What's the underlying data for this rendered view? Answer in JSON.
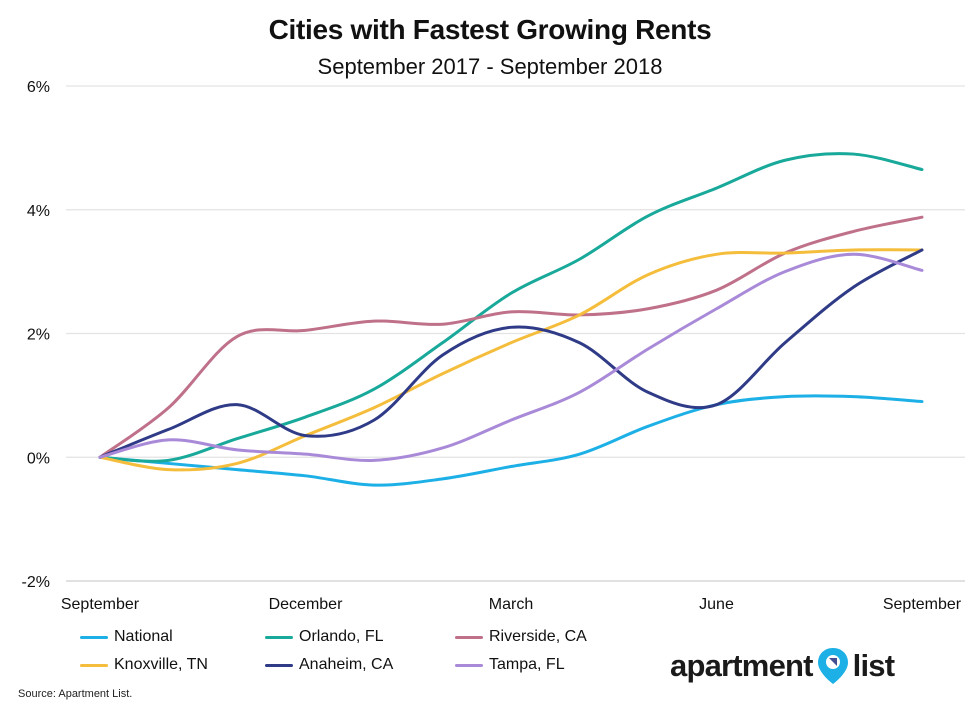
{
  "chart_data": {
    "type": "line",
    "title": "Cities with Fastest Growing Rents",
    "subtitle": "September 2017 - September 2018",
    "xlabel": "",
    "ylabel": "",
    "x": [
      0,
      1,
      2,
      3,
      4,
      5,
      6,
      7,
      8,
      9,
      10,
      11,
      12
    ],
    "x_tick_labels": [
      {
        "label": "September",
        "x": 0
      },
      {
        "label": "December",
        "x": 3
      },
      {
        "label": "March",
        "x": 6
      },
      {
        "label": "June",
        "x": 9
      },
      {
        "label": "September",
        "x": 12
      }
    ],
    "y_ticks": [
      -2,
      0,
      2,
      4,
      6
    ],
    "y_tick_labels": [
      "-2%",
      "0%",
      "2%",
      "4%",
      "6%"
    ],
    "ylim": [
      -2,
      6
    ],
    "grid": true,
    "legend_position": "bottom-left",
    "series": [
      {
        "name": "National",
        "color": "#1cb0e6",
        "values": [
          0,
          -0.1,
          -0.2,
          -0.3,
          -0.45,
          -0.35,
          -0.15,
          0.05,
          0.5,
          0.85,
          0.98,
          0.98,
          0.9
        ]
      },
      {
        "name": "Orlando, FL",
        "color": "#18a99a",
        "values": [
          0,
          -0.05,
          0.3,
          0.65,
          1.1,
          1.85,
          2.65,
          3.2,
          3.9,
          4.35,
          4.8,
          4.9,
          4.65
        ]
      },
      {
        "name": "Riverside, CA",
        "color": "#c0718a",
        "values": [
          0,
          0.8,
          1.95,
          2.05,
          2.2,
          2.15,
          2.35,
          2.3,
          2.4,
          2.7,
          3.3,
          3.65,
          3.88
        ]
      },
      {
        "name": "Knoxville, TN",
        "color": "#f5bd3c",
        "values": [
          0,
          -0.2,
          -0.1,
          0.35,
          0.8,
          1.35,
          1.85,
          2.3,
          2.95,
          3.28,
          3.3,
          3.35,
          3.35
        ]
      },
      {
        "name": "Anaheim, CA",
        "color": "#2f3b87",
        "values": [
          0,
          0.45,
          0.85,
          0.35,
          0.6,
          1.65,
          2.1,
          1.85,
          1.05,
          0.85,
          1.85,
          2.75,
          3.35
        ]
      },
      {
        "name": "Tampa, FL",
        "color": "#a98ad8",
        "values": [
          0,
          0.28,
          0.12,
          0.05,
          -0.05,
          0.15,
          0.6,
          1.05,
          1.75,
          2.4,
          3.0,
          3.28,
          3.02
        ]
      }
    ]
  },
  "source": "Source: Apartment List.",
  "logo": {
    "left": "apartment",
    "right": "list"
  }
}
